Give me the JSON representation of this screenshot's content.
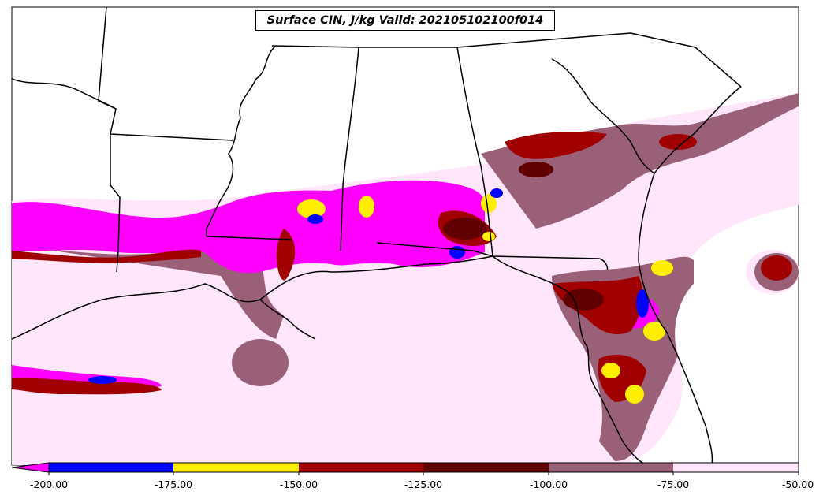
{
  "title": "Surface CIN, J/kg Valid: 202105102100f014",
  "colorbar": {
    "ticks": [
      "-200.00",
      "-175.00",
      "-150.00",
      "-125.00",
      "-100.00",
      "-75.00",
      "-50.00"
    ],
    "extend": "min",
    "colors": {
      "lt_-200": "#ff00ff",
      "-200_-175": "#0000ff",
      "-175_-150": "#ffee00",
      "-150_-125": "#a00000",
      "-125_-100": "#600000",
      "-100_-75": "#9a6078",
      "-75_-50": "#ffe6fb"
    }
  }
}
